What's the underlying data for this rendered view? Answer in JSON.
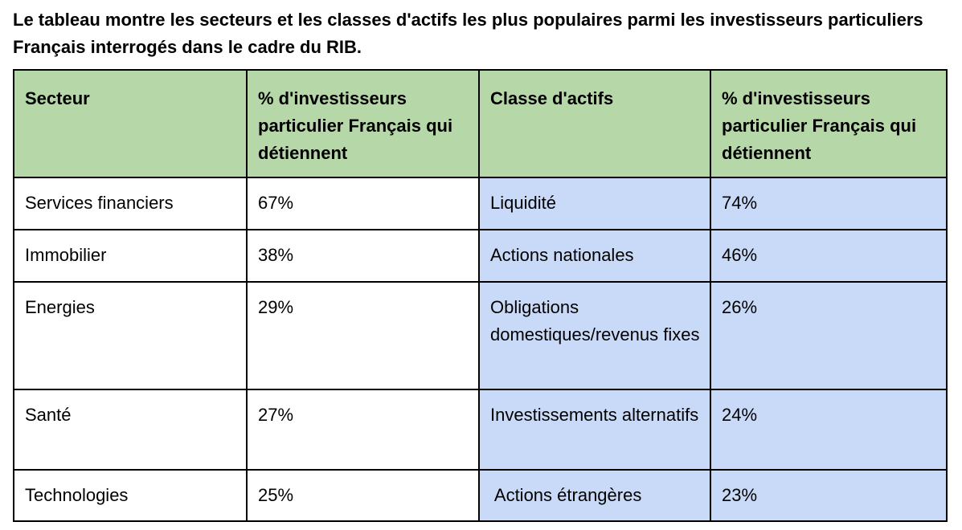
{
  "caption": "Le tableau montre les secteurs et les classes d'actifs les plus populaires parmi les investisseurs particuliers Français interrogés dans le cadre du RIB.",
  "table": {
    "headers": [
      "Secteur",
      "% d'investisseurs particulier Français qui détiennent",
      "Classe d'actifs",
      "% d'investisseurs particulier Français qui détiennent"
    ],
    "rows": [
      {
        "secteur": "Services financiers",
        "secteur_pct": "67%",
        "classe": "Liquidité",
        "classe_pct": "74%"
      },
      {
        "secteur": "Immobilier",
        "secteur_pct": "38%",
        "classe": "Actions nationales",
        "classe_pct": "46%"
      },
      {
        "secteur": "Energies",
        "secteur_pct": "29%",
        "classe": "Obligations domestiques/revenus fixes",
        "classe_pct": "26%"
      },
      {
        "secteur": "Santé",
        "secteur_pct": "27%",
        "classe": "Investissements alternatifs",
        "classe_pct": "24%"
      },
      {
        "secteur": "Technologies",
        "secteur_pct": "25%",
        "classe": " Actions étrangères",
        "classe_pct": "23%"
      }
    ]
  },
  "colors": {
    "header_bg": "#b6d7a8",
    "asset_class_bg": "#c9daf8",
    "border": "#000000"
  }
}
